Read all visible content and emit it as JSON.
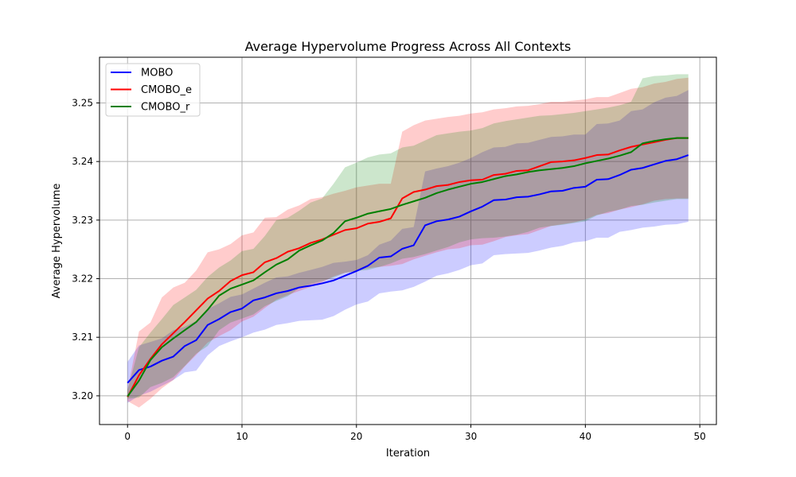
{
  "chart_data": {
    "type": "line",
    "title": "Average Hypervolume Progress Across All Contexts",
    "xlabel": "Iteration",
    "ylabel": "Average Hypervolume",
    "xlim": [
      -2.45,
      51.45
    ],
    "ylim": [
      3.1951,
      3.2578
    ],
    "xticks": [
      0,
      10,
      20,
      30,
      40,
      50
    ],
    "yticks": [
      3.2,
      3.21,
      3.22,
      3.23,
      3.24,
      3.25
    ],
    "ytick_labels": [
      "3.20",
      "3.21",
      "3.22",
      "3.23",
      "3.24",
      "3.25"
    ],
    "grid": true,
    "legend_position": "top-left",
    "x": [
      0,
      1,
      2,
      3,
      4,
      5,
      6,
      7,
      8,
      9,
      10,
      11,
      12,
      13,
      14,
      15,
      16,
      17,
      18,
      19,
      20,
      21,
      22,
      23,
      24,
      25,
      26,
      27,
      28,
      29,
      30,
      31,
      32,
      33,
      34,
      35,
      36,
      37,
      38,
      39,
      40,
      41,
      42,
      43,
      44,
      45,
      46,
      47,
      48,
      49
    ],
    "series": [
      {
        "name": "MOBO",
        "color": "#0000ff",
        "mean": [
          3.2022,
          3.2044,
          3.205,
          3.206,
          3.2067,
          3.2085,
          3.2095,
          3.2121,
          3.2131,
          3.2143,
          3.2149,
          3.2163,
          3.2168,
          3.2175,
          3.2179,
          3.2185,
          3.2188,
          3.2192,
          3.2197,
          3.2205,
          3.2213,
          3.2222,
          3.2236,
          3.2238,
          3.2251,
          3.2257,
          3.2291,
          3.2298,
          3.2301,
          3.2306,
          3.2315,
          3.2323,
          3.2334,
          3.2335,
          3.2339,
          3.234,
          3.2344,
          3.2349,
          3.235,
          3.2355,
          3.2357,
          3.2369,
          3.237,
          3.2377,
          3.2386,
          3.2389,
          3.2395,
          3.2401,
          3.2404,
          3.2411
        ],
        "upper": [
          3.2058,
          3.2086,
          3.2092,
          3.2098,
          3.2112,
          3.2118,
          3.2128,
          3.2148,
          3.2158,
          3.2169,
          3.2173,
          3.2183,
          3.2193,
          3.2202,
          3.2204,
          3.221,
          3.2215,
          3.222,
          3.2227,
          3.2229,
          3.2232,
          3.224,
          3.2258,
          3.2265,
          3.2285,
          3.2288,
          3.2383,
          3.2388,
          3.2392,
          3.2398,
          3.2406,
          3.2416,
          3.2424,
          3.2425,
          3.2431,
          3.2432,
          3.2437,
          3.2442,
          3.2443,
          3.2446,
          3.2446,
          3.2464,
          3.2465,
          3.247,
          3.2486,
          3.2489,
          3.2501,
          3.2509,
          3.2512,
          3.2522
        ],
        "lower": [
          3.1988,
          3.2,
          3.2007,
          3.2017,
          3.2027,
          3.204,
          3.2043,
          3.2069,
          3.2085,
          3.2093,
          3.21,
          3.2108,
          3.2113,
          3.2121,
          3.2124,
          3.2128,
          3.2129,
          3.213,
          3.2136,
          3.2147,
          3.2156,
          3.2161,
          3.2175,
          3.2178,
          3.218,
          3.2186,
          3.2195,
          3.2205,
          3.2209,
          3.2215,
          3.2223,
          3.2226,
          3.224,
          3.2242,
          3.2243,
          3.2244,
          3.2248,
          3.2253,
          3.2256,
          3.2262,
          3.2264,
          3.227,
          3.227,
          3.228,
          3.2283,
          3.2287,
          3.2289,
          3.2292,
          3.2293,
          3.2297
        ]
      },
      {
        "name": "CMOBO_e",
        "color": "#ff0000",
        "mean": [
          3.1998,
          3.2035,
          3.2063,
          3.2088,
          3.2107,
          3.2126,
          3.2146,
          3.2166,
          3.2179,
          3.2196,
          3.2206,
          3.2211,
          3.2228,
          3.2235,
          3.2246,
          3.2252,
          3.2261,
          3.2267,
          3.2275,
          3.2283,
          3.2286,
          3.2294,
          3.2297,
          3.2303,
          3.2337,
          3.2348,
          3.2352,
          3.2358,
          3.236,
          3.2365,
          3.2368,
          3.2369,
          3.2377,
          3.2379,
          3.2384,
          3.2385,
          3.2392,
          3.2399,
          3.24,
          3.2402,
          3.2406,
          3.2411,
          3.2412,
          3.2419,
          3.2425,
          3.2429,
          3.2433,
          3.2437,
          3.244,
          3.244
        ],
        "upper": [
          3.201,
          3.211,
          3.2125,
          3.2168,
          3.2185,
          3.2193,
          3.2214,
          3.2245,
          3.225,
          3.2259,
          3.2274,
          3.2279,
          3.2304,
          3.2305,
          3.2318,
          3.2325,
          3.2336,
          3.2339,
          3.2345,
          3.235,
          3.2356,
          3.2359,
          3.2362,
          3.2362,
          3.2451,
          3.2462,
          3.247,
          3.2473,
          3.2476,
          3.2478,
          3.2482,
          3.2484,
          3.2489,
          3.2491,
          3.2494,
          3.2495,
          3.2498,
          3.2502,
          3.2502,
          3.2504,
          3.2506,
          3.251,
          3.251,
          3.2517,
          3.2524,
          3.2527,
          3.2533,
          3.2536,
          3.2541,
          3.2543
        ],
        "lower": [
          3.1991,
          3.198,
          3.1995,
          3.2013,
          3.2027,
          3.205,
          3.207,
          3.2091,
          3.2102,
          3.2112,
          3.2127,
          3.2135,
          3.215,
          3.2164,
          3.2172,
          3.2179,
          3.2186,
          3.2194,
          3.2204,
          3.221,
          3.2213,
          3.2218,
          3.222,
          3.2222,
          3.2225,
          3.2233,
          3.2239,
          3.2245,
          3.225,
          3.2252,
          3.2257,
          3.2258,
          3.2264,
          3.2271,
          3.2274,
          3.2276,
          3.2283,
          3.229,
          3.2293,
          3.2296,
          3.2301,
          3.2309,
          3.2312,
          3.2318,
          3.2322,
          3.2327,
          3.2333,
          3.2336,
          3.2337,
          3.2337
        ]
      },
      {
        "name": "CMOBO_r",
        "color": "#008000",
        "mean": [
          3.1999,
          3.2026,
          3.2061,
          3.2083,
          3.2098,
          3.2112,
          3.2126,
          3.2147,
          3.2171,
          3.2183,
          3.219,
          3.2197,
          3.2211,
          3.2224,
          3.2233,
          3.2248,
          3.2257,
          3.2265,
          3.2278,
          3.2298,
          3.2304,
          3.2311,
          3.2315,
          3.2319,
          3.2326,
          3.2332,
          3.2338,
          3.2346,
          3.2352,
          3.2357,
          3.2362,
          3.2365,
          3.237,
          3.2375,
          3.2378,
          3.2382,
          3.2385,
          3.2387,
          3.2389,
          3.2392,
          3.2397,
          3.2401,
          3.2405,
          3.241,
          3.2416,
          3.2431,
          3.2435,
          3.2438,
          3.244,
          3.244
        ],
        "upper": [
          3.201,
          3.2083,
          3.2108,
          3.2131,
          3.2155,
          3.2168,
          3.2181,
          3.2203,
          3.2219,
          3.2231,
          3.2247,
          3.2251,
          3.2273,
          3.23,
          3.2304,
          3.2316,
          3.233,
          3.2337,
          3.2362,
          3.239,
          3.2398,
          3.2407,
          3.2412,
          3.2414,
          3.2424,
          3.2427,
          3.2436,
          3.2445,
          3.2448,
          3.2451,
          3.2453,
          3.2457,
          3.2465,
          3.2469,
          3.2472,
          3.2475,
          3.2478,
          3.2479,
          3.2481,
          3.2483,
          3.2486,
          3.2489,
          3.2492,
          3.2496,
          3.2502,
          3.2542,
          3.2546,
          3.2547,
          3.2549,
          3.2549
        ],
        "lower": [
          3.1995,
          3.1997,
          3.2015,
          3.2022,
          3.2032,
          3.2051,
          3.2072,
          3.2085,
          3.2112,
          3.2125,
          3.2132,
          3.2139,
          3.2153,
          3.2162,
          3.217,
          3.2184,
          3.2191,
          3.2196,
          3.2202,
          3.221,
          3.2213,
          3.2215,
          3.222,
          3.2226,
          3.2234,
          3.2237,
          3.2242,
          3.2248,
          3.2254,
          3.2262,
          3.2267,
          3.2269,
          3.227,
          3.2272,
          3.2275,
          3.228,
          3.2287,
          3.229,
          3.2292,
          3.2295,
          3.2298,
          3.2308,
          3.2314,
          3.2318,
          3.2324,
          3.2326,
          3.233,
          3.2333,
          3.2336,
          3.2336
        ]
      }
    ]
  }
}
